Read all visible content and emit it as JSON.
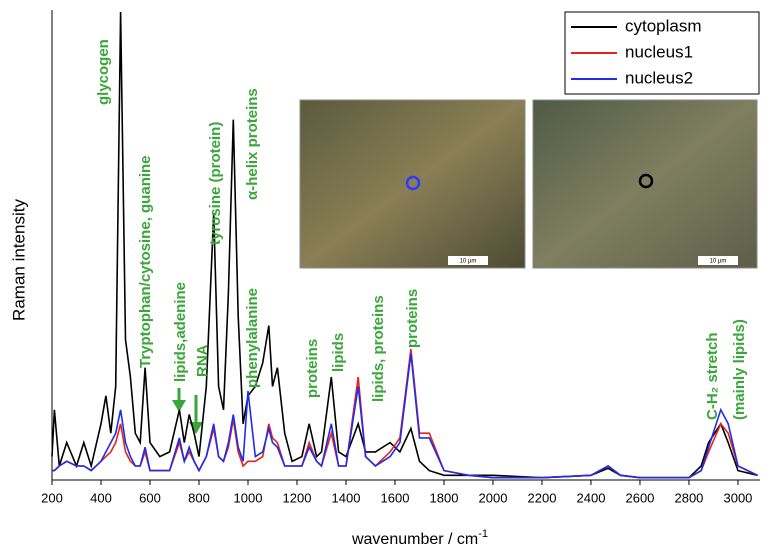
{
  "chart_data": {
    "type": "line",
    "x_label": "wavenumber / cm",
    "x_label_sup": "-1",
    "y_label": "Raman intensity",
    "xlim": [
      200,
      3090
    ],
    "ylim": [
      0,
      100
    ],
    "xticks": [
      200,
      400,
      600,
      800,
      1000,
      1200,
      1400,
      1600,
      1800,
      2000,
      2200,
      2400,
      2600,
      2800,
      3000
    ],
    "legend": "top-right",
    "annotation_color": "#3aa63a",
    "annotations": [
      "glycogen",
      "Tryptophan/cytosine, guanine",
      "lipids,adenine",
      "RNA",
      "tyrosine (protein)",
      "α-helix proteins",
      "phenylalanine",
      "proteins",
      "lipids",
      "lipids, proteins",
      "proteins",
      "C-H₂ stretch",
      "(mainly lipids)"
    ],
    "inset_scale_labels": [
      "10 µm",
      "10 µm"
    ],
    "x": [
      200,
      210,
      230,
      260,
      300,
      330,
      360,
      400,
      420,
      440,
      460,
      480,
      500,
      520,
      540,
      560,
      580,
      600,
      640,
      680,
      720,
      740,
      760,
      780,
      800,
      830,
      860,
      880,
      900,
      920,
      940,
      960,
      980,
      1000,
      1030,
      1060,
      1085,
      1100,
      1120,
      1150,
      1180,
      1220,
      1250,
      1280,
      1300,
      1340,
      1370,
      1400,
      1450,
      1480,
      1520,
      1580,
      1620,
      1665,
      1700,
      1740,
      1800,
      1900,
      2000,
      2200,
      2400,
      2470,
      2520,
      2600,
      2800,
      2850,
      2880,
      2930,
      2960,
      3000,
      3080
    ],
    "series": [
      {
        "name": "cytoplasm",
        "color": "#000000",
        "values": [
          5,
          15,
          3,
          8,
          3,
          8,
          3,
          12,
          18,
          10,
          20,
          100,
          30,
          22,
          10,
          8,
          24,
          8,
          5,
          6,
          15,
          8,
          14,
          10,
          5,
          20,
          57,
          20,
          15,
          40,
          77,
          35,
          12,
          18,
          20,
          25,
          33,
          20,
          24,
          10,
          4,
          5,
          12,
          5,
          6,
          22,
          6,
          5,
          12,
          6,
          6,
          8,
          6,
          11,
          4,
          2,
          1,
          1,
          1,
          0.5,
          1,
          2.5,
          1,
          0.5,
          0.5,
          3,
          8,
          12,
          8,
          2,
          1
        ]
      },
      {
        "name": "nucleus1",
        "color": "#e8231e",
        "values": [
          2,
          2,
          3,
          4,
          3,
          3,
          2,
          4,
          5,
          6,
          8,
          12,
          6,
          4,
          3,
          3,
          6,
          2,
          2,
          2,
          8,
          4,
          6,
          4,
          2,
          5,
          11,
          5,
          4,
          7,
          13,
          6,
          3,
          4,
          4,
          5,
          12,
          9,
          8,
          3,
          3,
          3,
          8,
          4,
          3,
          10,
          3,
          3,
          22,
          5,
          3,
          6,
          9,
          28,
          10,
          10,
          2,
          1,
          0.5,
          0.5,
          1,
          3,
          1,
          0.5,
          0.5,
          2,
          6,
          12,
          10,
          3,
          1
        ]
      },
      {
        "name": "nucleus2",
        "color": "#1e2ee8",
        "values": [
          2,
          2,
          3,
          4,
          3,
          3,
          2,
          4,
          6,
          8,
          10,
          15,
          8,
          5,
          3,
          3,
          7,
          2,
          2,
          2,
          9,
          4,
          7,
          4,
          2,
          5,
          12,
          5,
          4,
          8,
          14,
          7,
          4,
          19,
          5,
          6,
          11,
          8,
          7,
          3,
          3,
          3,
          7,
          4,
          3,
          12,
          3,
          3,
          20,
          5,
          3,
          5,
          8,
          27,
          9,
          9,
          2,
          1,
          0.5,
          0.5,
          1,
          3,
          1,
          0.5,
          0.5,
          2,
          7,
          15,
          12,
          3,
          1
        ]
      }
    ]
  }
}
